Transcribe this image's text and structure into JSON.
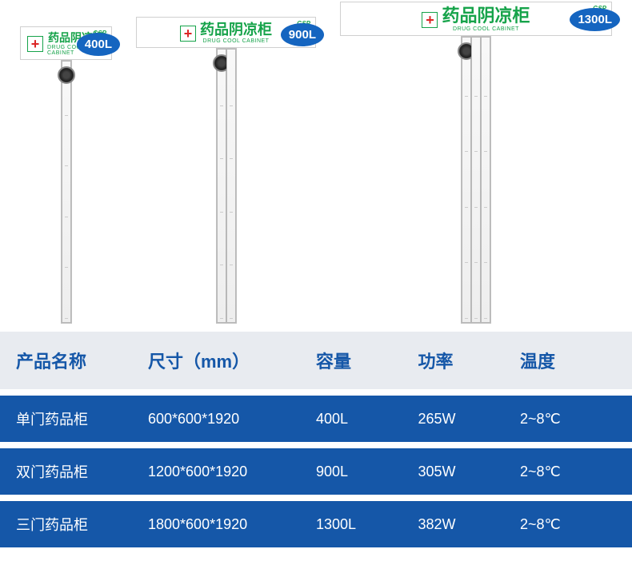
{
  "header": {
    "title_cn": "药品阴凉柜",
    "title_en": "DRUG COOL CABINET",
    "gsp": "GSP"
  },
  "badges": {
    "c1": "400L",
    "c2": "900L",
    "c3": "1300L"
  },
  "table": {
    "headers": {
      "name": "产品名称",
      "size": "尺寸（mm）",
      "capacity": "容量",
      "power": "功率",
      "temp": "温度"
    },
    "rows": [
      {
        "name": "单门药品柜",
        "size": "600*600*1920",
        "capacity": "400L",
        "power": "265W",
        "temp": "2~8℃"
      },
      {
        "name": "双门药品柜",
        "size": "1200*600*1920",
        "capacity": "900L",
        "power": "305W",
        "temp": "2~8℃"
      },
      {
        "name": "三门药品柜",
        "size": "1800*600*1920",
        "capacity": "1300L",
        "power": "382W",
        "temp": "2~8℃"
      }
    ]
  },
  "colors": {
    "brand_blue": "#1557a8",
    "brand_green": "#16a34a",
    "header_bg": "#e8ebf0"
  }
}
